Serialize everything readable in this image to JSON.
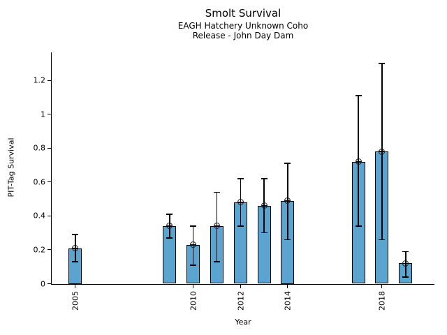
{
  "chart_data": {
    "type": "bar",
    "title": "Smolt Survival",
    "subtitle1": "EAGH Hatchery Unknown Coho",
    "subtitle2": "Release - John Day Dam",
    "xlabel": "Year",
    "ylabel": "PIT-Tag Survival",
    "xlim": [
      2004,
      2020.22
    ],
    "ylim": [
      0,
      1.365
    ],
    "yticks": [
      0,
      0.2,
      0.4,
      0.6,
      0.8,
      1,
      1.2
    ],
    "xticks": [
      2005,
      2010,
      2012,
      2014,
      2018
    ],
    "grid": false,
    "legend_position": "none",
    "bar_color": "#5CA4D0",
    "bar_edge_color": "#000000",
    "error_color": "#000000",
    "categories": [
      2005,
      2009,
      2010,
      2011,
      2012,
      2013,
      2014,
      2017,
      2018,
      2019
    ],
    "series": [
      {
        "name": "PIT-Tag Survival",
        "points": [
          {
            "year": 2005,
            "value": 0.21,
            "lo": 0.13,
            "hi": 0.29
          },
          {
            "year": 2009,
            "value": 0.34,
            "lo": 0.27,
            "hi": 0.41
          },
          {
            "year": 2010,
            "value": 0.23,
            "lo": 0.11,
            "hi": 0.34
          },
          {
            "year": 2011,
            "value": 0.34,
            "lo": 0.13,
            "hi": 0.54
          },
          {
            "year": 2012,
            "value": 0.48,
            "lo": 0.34,
            "hi": 0.62
          },
          {
            "year": 2013,
            "value": 0.46,
            "lo": 0.3,
            "hi": 0.62
          },
          {
            "year": 2014,
            "value": 0.49,
            "lo": 0.26,
            "hi": 0.71
          },
          {
            "year": 2017,
            "value": 0.72,
            "lo": 0.34,
            "hi": 1.11
          },
          {
            "year": 2018,
            "value": 0.78,
            "lo": 0.26,
            "hi": 1.3
          },
          {
            "year": 2019,
            "value": 0.12,
            "lo": 0.04,
            "hi": 0.19
          }
        ]
      }
    ]
  }
}
